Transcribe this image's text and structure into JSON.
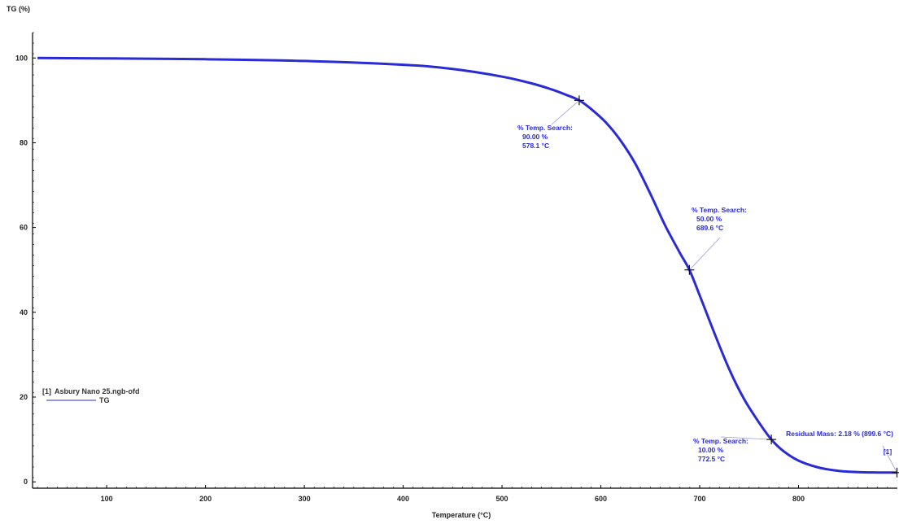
{
  "chart_data": {
    "type": "line",
    "ylabel": "TG (%)",
    "xlabel": "Temperature (°C)",
    "xlim": [
      25,
      900
    ],
    "ylim": [
      -1.5,
      106
    ],
    "x_ticks": [
      100,
      200,
      300,
      400,
      500,
      600,
      700,
      800
    ],
    "y_ticks": [
      0,
      20,
      40,
      60,
      80,
      100
    ],
    "series_color": "#2a2ad6",
    "legend": {
      "marker": "[1]",
      "file": "Asbury Nano 25.ngb-ofd",
      "entry": "TG"
    },
    "series": [
      {
        "name": "TG",
        "x": [
          30,
          100,
          200,
          300,
          400,
          450,
          500,
          530,
          550,
          565,
          578.1,
          590,
          605,
          620,
          635,
          650,
          665,
          680,
          689.6,
          700,
          715,
          730,
          745,
          760,
          772.5,
          785,
          800,
          820,
          840,
          860,
          880,
          899.6
        ],
        "y": [
          100,
          99.9,
          99.7,
          99.3,
          98.4,
          97.4,
          95.6,
          94.0,
          92.6,
          91.3,
          90.0,
          88.0,
          84.8,
          80.5,
          75.0,
          68.0,
          60.5,
          54.0,
          50.0,
          44.0,
          35.0,
          26.5,
          19.5,
          14.0,
          10.0,
          7.2,
          5.0,
          3.4,
          2.6,
          2.3,
          2.2,
          2.18
        ]
      }
    ],
    "annotations": [
      {
        "marker_x": 578.1,
        "marker_y": 90.0,
        "lines": [
          "% Temp. Search:",
          "90.00 %",
          "578.1 °C"
        ]
      },
      {
        "marker_x": 689.6,
        "marker_y": 50.0,
        "lines": [
          "% Temp. Search:",
          "50.00 %",
          "689.6 °C"
        ]
      },
      {
        "marker_x": 772.5,
        "marker_y": 10.0,
        "lines": [
          "% Temp. Search:",
          "10.00 %",
          "772.5 °C"
        ]
      },
      {
        "marker_x": 899.6,
        "marker_y": 2.18,
        "lines": [
          "Residual Mass: 2.18 % (899.6 °C)"
        ]
      }
    ],
    "end_marker": "[1]"
  }
}
